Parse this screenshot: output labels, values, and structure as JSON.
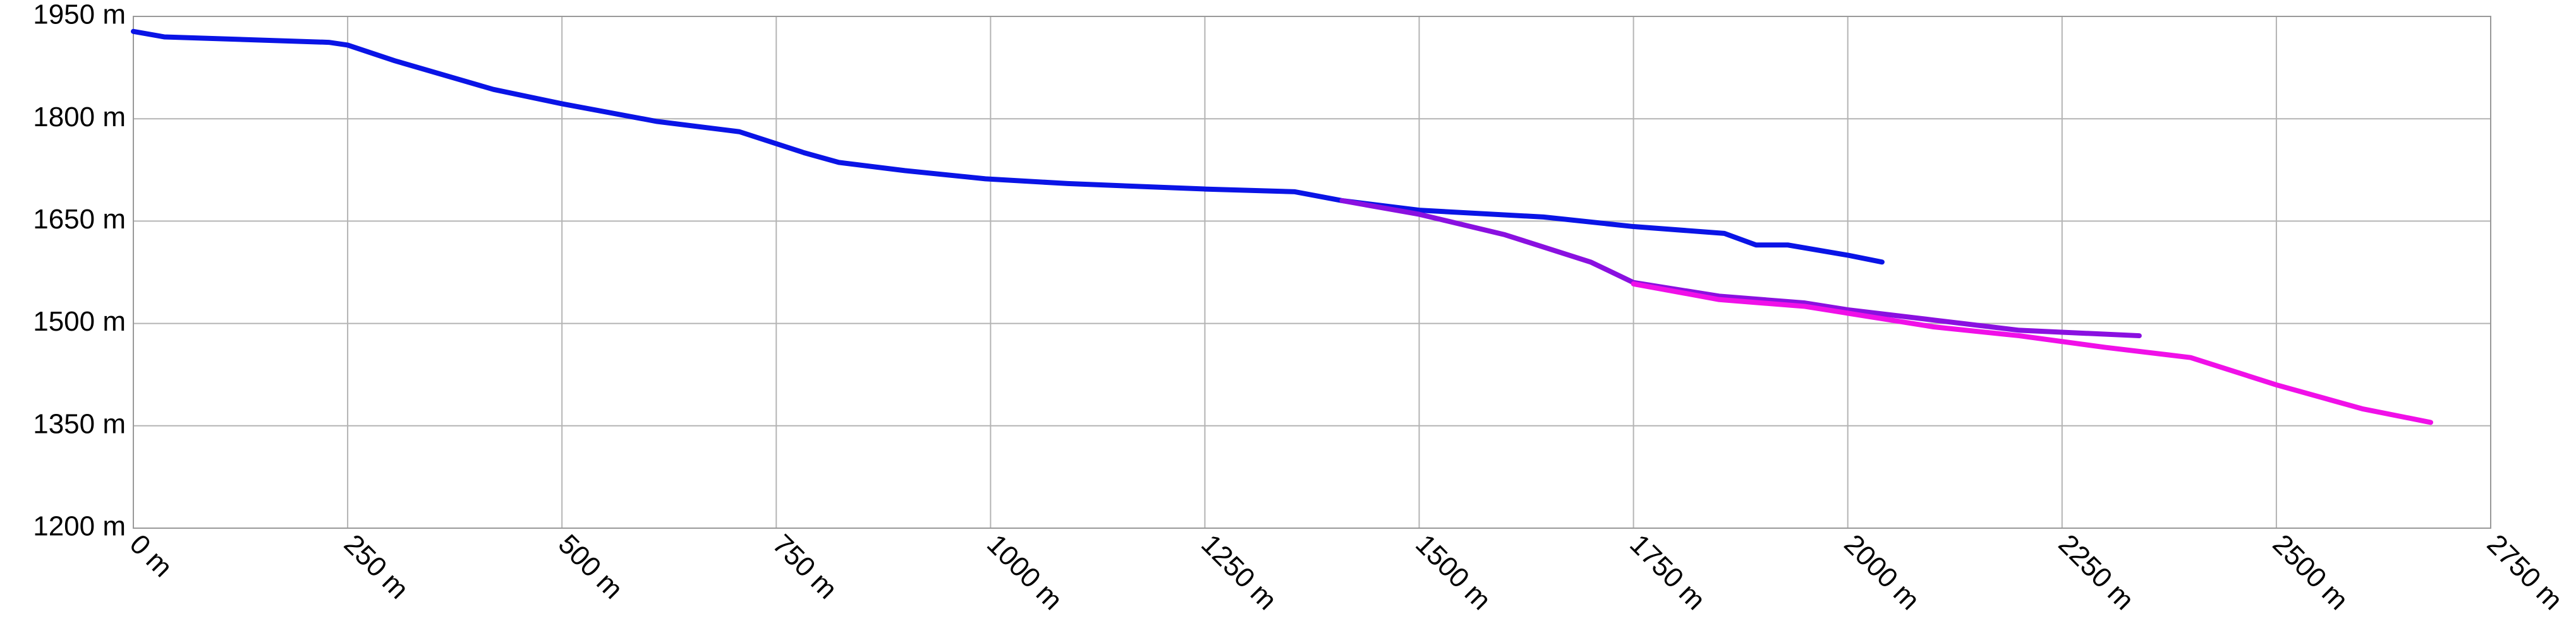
{
  "chart_data": {
    "type": "line",
    "xlim": [
      0,
      2750
    ],
    "xticks": [
      {
        "value": 0,
        "label": "0 m"
      },
      {
        "value": 250,
        "label": "250 m"
      },
      {
        "value": 500,
        "label": "500 m"
      },
      {
        "value": 750,
        "label": "750 m"
      },
      {
        "value": 1000,
        "label": "1000 m"
      },
      {
        "value": 1250,
        "label": "1250 m"
      },
      {
        "value": 1500,
        "label": "1500 m"
      },
      {
        "value": 1750,
        "label": "1750 m"
      },
      {
        "value": 2000,
        "label": "2000 m"
      },
      {
        "value": 2250,
        "label": "2250 m"
      },
      {
        "value": 2500,
        "label": "2500 m"
      },
      {
        "value": 2750,
        "label": "2750 m"
      }
    ],
    "ylim": [
      1200,
      1950
    ],
    "yticks": [
      {
        "value": 1200,
        "label": "1200 m"
      },
      {
        "value": 1350,
        "label": "1350 m"
      },
      {
        "value": 1500,
        "label": "1500 m"
      },
      {
        "value": 1650,
        "label": "1650 m"
      },
      {
        "value": 1800,
        "label": "1800 m"
      },
      {
        "value": 1950,
        "label": "1950 m"
      }
    ],
    "grid": true,
    "series": [
      {
        "color": "#0a14e6",
        "x": [
          0,
          36,
          228,
          250,
          305,
          420,
          500,
          611,
          707,
          783,
          823,
          900,
          994,
          1090,
          1250,
          1355,
          1410,
          1500,
          1645,
          1750,
          1856,
          1893,
          1930,
          2000,
          2040
        ],
        "values": [
          1928,
          1920,
          1912,
          1908,
          1885,
          1843,
          1822,
          1796,
          1781,
          1750,
          1736,
          1724,
          1712,
          1705,
          1697,
          1693,
          1680,
          1666,
          1656,
          1642,
          1632,
          1615,
          1615,
          1600,
          1590
        ]
      },
      {
        "color": "#8a10e0",
        "x": [
          1410,
          1500,
          1600,
          1700,
          1750,
          1850,
          1950,
          2000,
          2100,
          2200,
          2340
        ],
        "values": [
          1680,
          1660,
          1630,
          1590,
          1560,
          1540,
          1530,
          1520,
          1505,
          1490,
          1482
        ]
      },
      {
        "color": "#f010e8",
        "x": [
          1750,
          1850,
          1950,
          2000,
          2100,
          2200,
          2300,
          2400,
          2500,
          2600,
          2680
        ],
        "values": [
          1558,
          1535,
          1525,
          1515,
          1495,
          1482,
          1465,
          1450,
          1410,
          1375,
          1355
        ]
      }
    ]
  }
}
